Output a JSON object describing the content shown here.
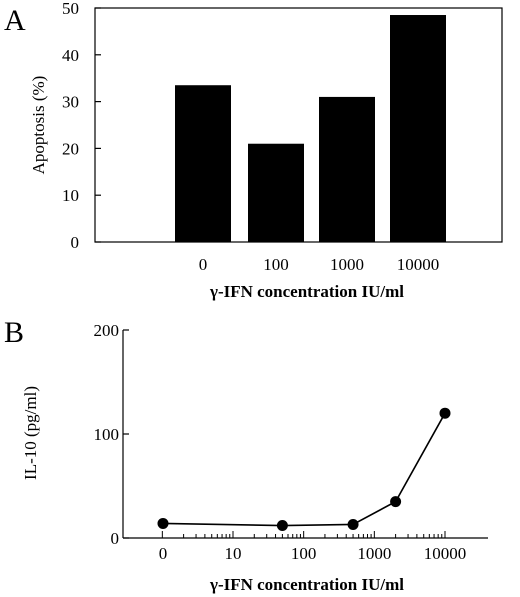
{
  "chart_data": [
    {
      "panel_label": "A",
      "type": "bar",
      "categories": [
        "0",
        "100",
        "1000",
        "10000"
      ],
      "values": [
        33.5,
        21,
        31,
        48.5
      ],
      "xlabel": "γ-IFN concentration IU/ml",
      "ylabel": "Apoptosis (%)",
      "ylim": [
        0,
        50
      ],
      "yticks": [
        "0",
        "10",
        "20",
        "30",
        "40",
        "50"
      ],
      "bar_color": "#000000",
      "grid": false,
      "legend": "none"
    },
    {
      "panel_label": "B",
      "type": "line",
      "xscale": "log",
      "x_tick_labels": [
        "0",
        "10",
        "100",
        "1000",
        "10000"
      ],
      "x": [
        0,
        50,
        500,
        2000,
        10000
      ],
      "values": [
        14,
        12,
        13,
        35,
        120
      ],
      "xlabel": "γ-IFN concentration IU/ml",
      "ylabel": "IL-10 (pg/ml)",
      "ylim": [
        0,
        200
      ],
      "yticks": [
        "0",
        "100",
        "200"
      ],
      "marker": "filled-circle",
      "line_color": "#000000",
      "grid": false,
      "legend": "none"
    }
  ]
}
